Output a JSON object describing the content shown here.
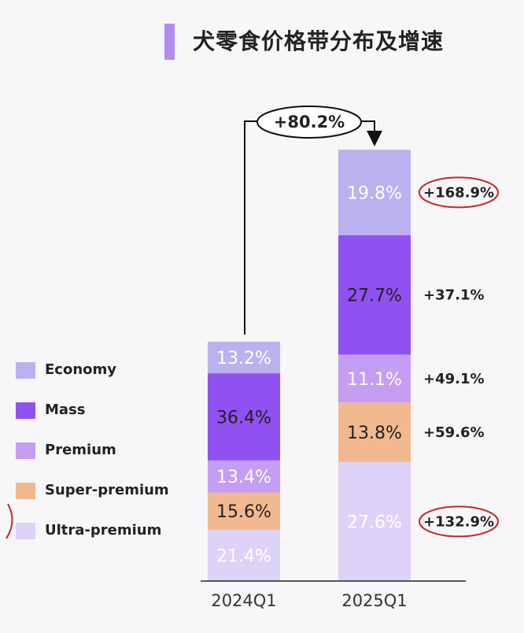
{
  "title": "犬零食价格带分布及增速",
  "chart_data": {
    "type": "bar",
    "stacked": true,
    "percent_stacked": true,
    "categories": [
      "2024Q1",
      "2025Q1"
    ],
    "series": [
      {
        "name": "Ultra-premium",
        "values": [
          21.4,
          27.6
        ],
        "labels": [
          "21.4%",
          "27.6%"
        ],
        "color": "#ddd3f8",
        "text_color": "#ffffff",
        "growth": "+132.9%",
        "highlighted": true
      },
      {
        "name": "Super-premium",
        "values": [
          15.6,
          13.8
        ],
        "labels": [
          "15.6%",
          "13.8%"
        ],
        "color": "#f2b990",
        "text_color": "#222222",
        "growth": "+59.6%",
        "highlighted": false
      },
      {
        "name": "Premium",
        "values": [
          13.4,
          11.1
        ],
        "labels": [
          "13.4%",
          "11.1%"
        ],
        "color": "#c59ef3",
        "text_color": "#ffffff",
        "growth": "+49.1%",
        "highlighted": false
      },
      {
        "name": "Mass",
        "values": [
          36.4,
          27.7
        ],
        "labels": [
          "36.4%",
          "27.7%"
        ],
        "color": "#9150f0",
        "text_color": "#222222",
        "growth": "+37.1%",
        "highlighted": false
      },
      {
        "name": "Economy",
        "values": [
          13.2,
          19.8
        ],
        "labels": [
          "13.2%",
          "19.8%"
        ],
        "color": "#bcb1f0",
        "text_color": "#ffffff",
        "growth": "+168.9%",
        "highlighted": true
      }
    ],
    "relative_total_size": [
      1.0,
      1.802
    ],
    "total_growth": "+80.2%",
    "legend_order": [
      "Economy",
      "Mass",
      "Premium",
      "Super-premium",
      "Ultra-premium"
    ],
    "legend_position": "left"
  }
}
